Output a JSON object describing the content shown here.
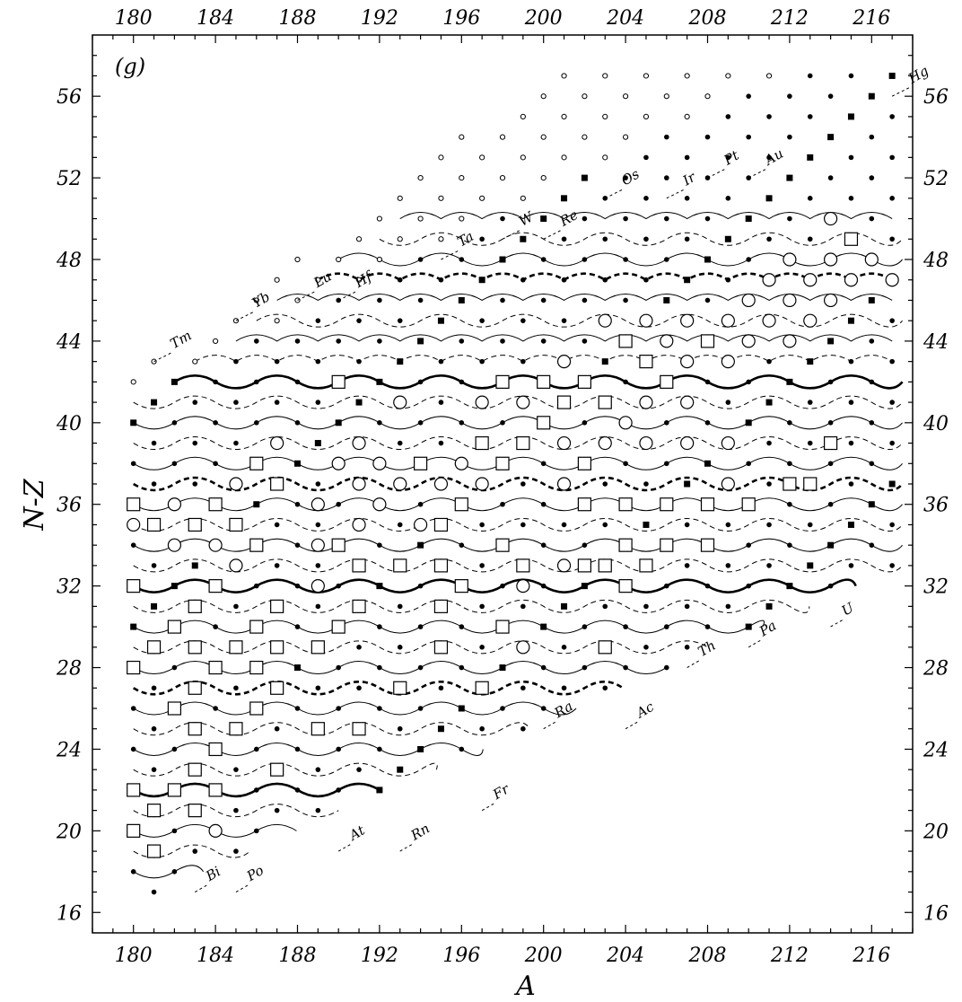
{
  "chart_data": {
    "type": "scatter",
    "panel_label": "(g)",
    "xlabel": "A",
    "ylabel": "N-Z",
    "xlim": [
      178,
      218
    ],
    "ylim": [
      15,
      59
    ],
    "x_ticks": [
      180,
      184,
      188,
      192,
      196,
      200,
      204,
      208,
      212,
      216
    ],
    "y_ticks": [
      16,
      20,
      24,
      28,
      32,
      36,
      40,
      44,
      48,
      52,
      56
    ],
    "grid": false,
    "legend": "none",
    "elements": [
      {
        "symbol": "Tm",
        "label": "Tm",
        "A": 181,
        "NZ": 43
      },
      {
        "symbol": "Yb",
        "label": "Yb",
        "A": 185,
        "NZ": 45
      },
      {
        "symbol": "Lu",
        "label": "Lu",
        "A": 188,
        "NZ": 46
      },
      {
        "symbol": "Hf",
        "label": "Hf",
        "A": 190,
        "NZ": 46
      },
      {
        "symbol": "Ta",
        "label": "Ta",
        "A": 195,
        "NZ": 48
      },
      {
        "symbol": "W",
        "label": "W",
        "A": 198,
        "NZ": 49
      },
      {
        "symbol": "Re",
        "label": "Re",
        "A": 200,
        "NZ": 49
      },
      {
        "symbol": "Os",
        "label": "Os",
        "A": 203,
        "NZ": 51
      },
      {
        "symbol": "Ir",
        "label": "Ir",
        "A": 206,
        "NZ": 51
      },
      {
        "symbol": "Pt",
        "label": "Pt",
        "A": 208,
        "NZ": 52
      },
      {
        "symbol": "Au",
        "label": "Au",
        "A": 210,
        "NZ": 52
      },
      {
        "symbol": "Hg",
        "label": "Hg",
        "A": 217,
        "NZ": 56
      },
      {
        "symbol": "Bi",
        "label": "Bi",
        "A": 183,
        "NZ": 17
      },
      {
        "symbol": "Po",
        "label": "Po",
        "A": 185,
        "NZ": 17
      },
      {
        "symbol": "At",
        "label": "At",
        "A": 190,
        "NZ": 19
      },
      {
        "symbol": "Rn",
        "label": "Rn",
        "A": 193,
        "NZ": 19
      },
      {
        "symbol": "Fr",
        "label": "Fr",
        "A": 197,
        "NZ": 21
      },
      {
        "symbol": "Ra",
        "label": "Ra",
        "A": 200,
        "NZ": 25
      },
      {
        "symbol": "Ac",
        "label": "Ac",
        "A": 204,
        "NZ": 25
      },
      {
        "symbol": "Th",
        "label": "Th",
        "A": 207,
        "NZ": 28
      },
      {
        "symbol": "Pa",
        "label": "Pa",
        "A": 210,
        "NZ": 29
      },
      {
        "symbol": "U",
        "label": "U",
        "A": 214,
        "NZ": 30
      }
    ],
    "circle_nuclei": [
      [
        180,
        35
      ],
      [
        182,
        34
      ],
      [
        182,
        36
      ],
      [
        184,
        34
      ],
      [
        184,
        20
      ],
      [
        185,
        33
      ],
      [
        185,
        37
      ],
      [
        187,
        39
      ],
      [
        189,
        32
      ],
      [
        189,
        34
      ],
      [
        189,
        36
      ],
      [
        190,
        38
      ],
      [
        191,
        35
      ],
      [
        191,
        37
      ],
      [
        191,
        39
      ],
      [
        192,
        36
      ],
      [
        192,
        38
      ],
      [
        193,
        37
      ],
      [
        193,
        41
      ],
      [
        194,
        35
      ],
      [
        195,
        37
      ],
      [
        196,
        38
      ],
      [
        197,
        37
      ],
      [
        197,
        41
      ],
      [
        199,
        29
      ],
      [
        199,
        32
      ],
      [
        199,
        41
      ],
      [
        201,
        33
      ],
      [
        201,
        37
      ],
      [
        201,
        39
      ],
      [
        201,
        43
      ],
      [
        203,
        39
      ],
      [
        203,
        45
      ],
      [
        204,
        40
      ],
      [
        205,
        39
      ],
      [
        205,
        41
      ],
      [
        205,
        45
      ],
      [
        206,
        44
      ],
      [
        207,
        39
      ],
      [
        207,
        41
      ],
      [
        207,
        43
      ],
      [
        207,
        45
      ],
      [
        209,
        37
      ],
      [
        209,
        39
      ],
      [
        209,
        43
      ],
      [
        209,
        45
      ],
      [
        210,
        44
      ],
      [
        210,
        46
      ],
      [
        211,
        45
      ],
      [
        211,
        47
      ],
      [
        212,
        44
      ],
      [
        212,
        46
      ],
      [
        212,
        48
      ],
      [
        213,
        45
      ],
      [
        213,
        47
      ],
      [
        214,
        46
      ],
      [
        214,
        48
      ],
      [
        214,
        50
      ],
      [
        215,
        47
      ],
      [
        216,
        48
      ],
      [
        217,
        47
      ]
    ],
    "square_nuclei": [
      [
        180,
        36
      ],
      [
        180,
        32
      ],
      [
        180,
        28
      ],
      [
        180,
        22
      ],
      [
        180,
        20
      ],
      [
        181,
        35
      ],
      [
        181,
        29
      ],
      [
        181,
        19
      ],
      [
        181,
        21
      ],
      [
        182,
        30
      ],
      [
        182,
        26
      ],
      [
        182,
        22
      ],
      [
        183,
        35
      ],
      [
        183,
        31
      ],
      [
        183,
        29
      ],
      [
        183,
        27
      ],
      [
        183,
        25
      ],
      [
        183,
        23
      ],
      [
        183,
        21
      ],
      [
        184,
        36
      ],
      [
        184,
        32
      ],
      [
        184,
        28
      ],
      [
        184,
        24
      ],
      [
        184,
        22
      ],
      [
        185,
        35
      ],
      [
        185,
        29
      ],
      [
        185,
        25
      ],
      [
        186,
        38
      ],
      [
        186,
        34
      ],
      [
        186,
        30
      ],
      [
        186,
        28
      ],
      [
        186,
        26
      ],
      [
        187,
        37
      ],
      [
        187,
        31
      ],
      [
        187,
        29
      ],
      [
        187,
        27
      ],
      [
        187,
        23
      ],
      [
        189,
        29
      ],
      [
        189,
        25
      ],
      [
        190,
        42
      ],
      [
        190,
        34
      ],
      [
        190,
        30
      ],
      [
        191,
        33
      ],
      [
        191,
        31
      ],
      [
        191,
        25
      ],
      [
        193,
        33
      ],
      [
        193,
        27
      ],
      [
        194,
        38
      ],
      [
        195,
        35
      ],
      [
        195,
        33
      ],
      [
        195,
        31
      ],
      [
        195,
        29
      ],
      [
        196,
        36
      ],
      [
        196,
        32
      ],
      [
        197,
        39
      ],
      [
        197,
        27
      ],
      [
        198,
        42
      ],
      [
        198,
        38
      ],
      [
        198,
        34
      ],
      [
        198,
        30
      ],
      [
        199,
        39
      ],
      [
        199,
        33
      ],
      [
        200,
        42
      ],
      [
        200,
        40
      ],
      [
        201,
        41
      ],
      [
        202,
        42
      ],
      [
        202,
        38
      ],
      [
        202,
        36
      ],
      [
        202,
        33
      ],
      [
        203,
        41
      ],
      [
        203,
        33
      ],
      [
        203,
        29
      ],
      [
        204,
        44
      ],
      [
        204,
        36
      ],
      [
        204,
        34
      ],
      [
        204,
        32
      ],
      [
        205,
        43
      ],
      [
        205,
        33
      ],
      [
        206,
        42
      ],
      [
        206,
        36
      ],
      [
        206,
        34
      ],
      [
        208,
        44
      ],
      [
        208,
        36
      ],
      [
        208,
        34
      ],
      [
        210,
        36
      ],
      [
        212,
        37
      ],
      [
        213,
        37
      ],
      [
        214,
        39
      ],
      [
        215,
        49
      ]
    ],
    "filled_nuclei_count_note": ""
  }
}
